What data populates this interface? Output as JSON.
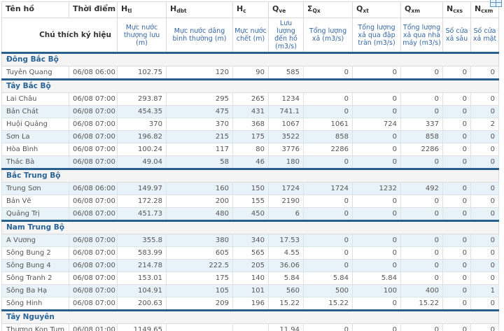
{
  "colors": {
    "accent": "#28618f",
    "regiontext": "#2a6496",
    "subhead": "#3566a5",
    "altbg": "#e8f2f9",
    "regionbg": "#f4f4f4"
  },
  "export_icon": "table-grid-icon",
  "header": {
    "note_label": "Chú thích ký hiệu",
    "columns": [
      {
        "id": "ten-ho",
        "label": "Tên hồ",
        "sub": "",
        "desc": ""
      },
      {
        "id": "thoi-diem",
        "label": "Thời điểm",
        "sub": "",
        "desc": ""
      },
      {
        "id": "htl",
        "label": "H",
        "sub": "tl",
        "desc": "Mực nước thượng lưu (m)"
      },
      {
        "id": "hdbt",
        "label": "H",
        "sub": "dbt",
        "desc": "Mực nước dâng bình thường (m)"
      },
      {
        "id": "hc",
        "label": "H",
        "sub": "c",
        "desc": "Mực nước chết (m)"
      },
      {
        "id": "qve",
        "label": "Q",
        "sub": "ve",
        "desc": "Lưu lượng đến hồ (m3/s)"
      },
      {
        "id": "sqx",
        "label": "Σ",
        "sub": "Qx",
        "desc": "Tổng lượng xả (m3/s)"
      },
      {
        "id": "qxt",
        "label": "Q",
        "sub": "xt",
        "desc": "Tổng lượng xả qua đập tràn (m3/s)"
      },
      {
        "id": "qxm",
        "label": "Q",
        "sub": "xm",
        "desc": "Tổng lượng xả qua nhà máy (m3/s)"
      },
      {
        "id": "ncxs",
        "label": "N",
        "sub": "cxs",
        "desc": "Số cửa xả sâu"
      },
      {
        "id": "ncxm",
        "label": "N",
        "sub": "cxm",
        "desc": "Số cửa xả mặt"
      }
    ]
  },
  "groups": [
    {
      "region": "Đông Bắc Bộ",
      "rows": [
        [
          "Tuyên Quang",
          "06/08 06:00",
          "102.75",
          "120",
          "90",
          "585",
          "0",
          "0",
          "0",
          "0",
          "0"
        ]
      ]
    },
    {
      "region": "Tây Bắc Bộ",
      "rows": [
        [
          "Lai Châu",
          "06/08 07:00",
          "293.87",
          "295",
          "265",
          "1234",
          "0",
          "0",
          "0",
          "0",
          "0"
        ],
        [
          "Bản Chát",
          "06/08 07:00",
          "454.35",
          "475",
          "431",
          "741.1",
          "0",
          "0",
          "0",
          "0",
          "0"
        ],
        [
          "Huội Quảng",
          "06/08 07:00",
          "370",
          "370",
          "368",
          "1067",
          "1061",
          "724",
          "337",
          "0",
          "2"
        ],
        [
          "Sơn La",
          "06/08 07:00",
          "196.82",
          "215",
          "175",
          "3522",
          "858",
          "0",
          "858",
          "0",
          "0"
        ],
        [
          "Hòa Bình",
          "06/08 07:00",
          "100.24",
          "117",
          "80",
          "3776",
          "2286",
          "0",
          "2286",
          "0",
          "0"
        ],
        [
          "Thác Bà",
          "06/08 07:00",
          "49.04",
          "58",
          "46",
          "180",
          "0",
          "0",
          "0",
          "0",
          "0"
        ]
      ]
    },
    {
      "region": "Bắc Trung Bộ",
      "rows": [
        [
          "Trung Sơn",
          "06/08 06:00",
          "149.97",
          "160",
          "150",
          "1724",
          "1724",
          "1232",
          "492",
          "0",
          "0"
        ],
        [
          "Bản Vẽ",
          "06/08 07:00",
          "172.28",
          "200",
          "155",
          "2190",
          "0",
          "0",
          "0",
          "0",
          "0"
        ],
        [
          "Quảng Trị",
          "06/08 07:00",
          "451.73",
          "480",
          "450",
          "6",
          "0",
          "0",
          "0",
          "0",
          "0"
        ]
      ]
    },
    {
      "region": "Nam Trung Bộ",
      "rows": [
        [
          "A Vương",
          "06/08 07:00",
          "355.8",
          "380",
          "340",
          "17.53",
          "0",
          "0",
          "0",
          "0",
          "0"
        ],
        [
          "Sông Bung 2",
          "06/08 07:00",
          "583.99",
          "605",
          "565",
          "4.55",
          "0",
          "0",
          "0",
          "0",
          "0"
        ],
        [
          "Sông Bung 4",
          "06/08 07:00",
          "214.78",
          "222.5",
          "205",
          "36.06",
          "0",
          "0",
          "0",
          "0",
          "0"
        ],
        [
          "Sông Tranh 2",
          "06/08 07:00",
          "153.01",
          "175",
          "140",
          "5.84",
          "5.84",
          "5.84",
          "0",
          "0",
          "0"
        ],
        [
          "Sông Ba Hạ",
          "06/08 07:00",
          "104.91",
          "105",
          "101",
          "560",
          "500",
          "100",
          "400",
          "0",
          "1"
        ],
        [
          "Sông Hinh",
          "06/08 07:00",
          "200.63",
          "209",
          "196",
          "15.22",
          "15.22",
          "0",
          "15.22",
          "0",
          "0"
        ]
      ]
    },
    {
      "region": "Tây Nguyên",
      "rows": [
        [
          "Thượng Kon Tum",
          "06/08 01:00",
          "1149.65",
          "",
          "",
          "11.94",
          "0",
          "0",
          "0",
          "0",
          "0"
        ]
      ]
    }
  ]
}
